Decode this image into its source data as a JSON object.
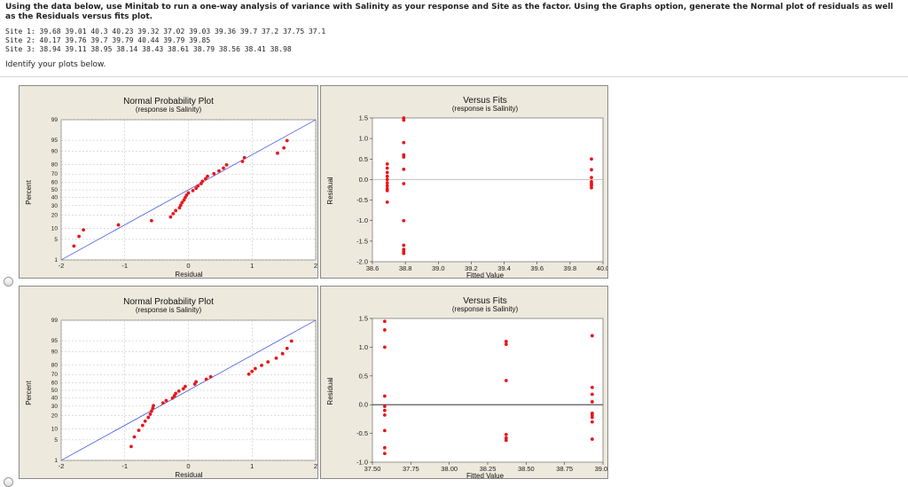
{
  "question": {
    "instructions": "Using the data below, use Minitab to run a one-way analysis of variance with Salinity as your response and Site as the factor. Using the Graphs option, generate the Normal plot of residuals as well as the Residuals versus fits plot.",
    "sites": [
      "Site 1: 39.68 39.01 40.3 40.23 39.32 37.02 39.03 39.36 39.7 37.2 37.75 37.1",
      "Site 2: 40.17 39.76 39.7 39.79 40.44 39.79 39.85",
      "Site 3: 38.94 39.11 38.95 38.14 38.43 38.61 38.79 38.56 38.41 38.98"
    ]
  },
  "prompt": "Identify your plots below.",
  "options": [
    {
      "normal_plot": {
        "title": "Normal Probability Plot",
        "subtitle": "(response is Salinity)",
        "xlabel": "Residual",
        "ylabel": "Percent",
        "y_ticks": [
          "1",
          "5",
          "10",
          "20",
          "30",
          "40",
          "50",
          "60",
          "70",
          "80",
          "90",
          "95",
          "99"
        ],
        "x_ticks": [
          "-2",
          "-1",
          "0",
          "1",
          "2"
        ],
        "chart_data": {
          "type": "scatter",
          "title": "Normal Probability Plot",
          "subtitle": "(response is Salinity)",
          "xlabel": "Residual",
          "ylabel": "Percent",
          "xlim": [
            -2.0,
            2.0
          ],
          "points": [
            [
              -1.8,
              3.1
            ],
            [
              -1.72,
              6.1
            ],
            [
              -1.65,
              9.2
            ],
            [
              -1.1,
              12.2
            ],
            [
              -0.58,
              15.3
            ],
            [
              -0.28,
              18.4
            ],
            [
              -0.24,
              21.4
            ],
            [
              -0.2,
              24.5
            ],
            [
              -0.14,
              27.6
            ],
            [
              -0.12,
              30.6
            ],
            [
              -0.1,
              33.7
            ],
            [
              -0.07,
              36.7
            ],
            [
              -0.05,
              39.8
            ],
            [
              -0.03,
              42.9
            ],
            [
              0.0,
              45.9
            ],
            [
              0.07,
              49.0
            ],
            [
              0.12,
              52.0
            ],
            [
              0.15,
              55.1
            ],
            [
              0.2,
              58.2
            ],
            [
              0.22,
              61.2
            ],
            [
              0.27,
              64.3
            ],
            [
              0.3,
              67.3
            ],
            [
              0.4,
              70.4
            ],
            [
              0.48,
              73.5
            ],
            [
              0.55,
              76.5
            ],
            [
              0.6,
              79.6
            ],
            [
              0.85,
              82.7
            ],
            [
              0.88,
              85.7
            ],
            [
              1.4,
              88.8
            ],
            [
              1.5,
              91.8
            ],
            [
              1.55,
              94.9
            ]
          ]
        }
      },
      "fits_plot": {
        "title": "Versus Fits",
        "subtitle": "(response is Salinity)",
        "xlabel": "Fitted Value",
        "ylabel": "Residual",
        "y_ticks": [
          "1.5",
          "1.0",
          "0.5",
          "0.0",
          "-0.5",
          "-1.0",
          "-1.5",
          "-2.0"
        ],
        "x_ticks": [
          "38.6",
          "38.8",
          "39.0",
          "39.2",
          "39.4",
          "39.6",
          "39.8",
          "40.0"
        ],
        "chart_data": {
          "type": "scatter",
          "title": "Versus Fits",
          "subtitle": "(response is Salinity)",
          "xlabel": "Fitted Value",
          "ylabel": "Residual",
          "xlim": [
            38.6,
            40.0
          ],
          "ylim": [
            -2.0,
            1.5
          ],
          "points": [
            [
              38.69,
              0.38
            ],
            [
              38.69,
              0.28
            ],
            [
              38.69,
              0.17
            ],
            [
              38.69,
              0.08
            ],
            [
              38.69,
              0.0
            ],
            [
              38.69,
              -0.08
            ],
            [
              38.69,
              -0.15
            ],
            [
              38.69,
              -0.22
            ],
            [
              38.69,
              -0.27
            ],
            [
              38.69,
              -0.55
            ],
            [
              38.79,
              1.5
            ],
            [
              38.79,
              1.45
            ],
            [
              38.79,
              0.9
            ],
            [
              38.79,
              0.6
            ],
            [
              38.79,
              0.55
            ],
            [
              38.79,
              0.25
            ],
            [
              38.79,
              -1.0
            ],
            [
              38.79,
              -1.6
            ],
            [
              38.79,
              -1.7
            ],
            [
              38.79,
              -1.75
            ],
            [
              38.79,
              -1.8
            ],
            [
              38.79,
              -0.1
            ],
            [
              39.93,
              0.5
            ],
            [
              39.93,
              0.24
            ],
            [
              39.93,
              0.05
            ],
            [
              39.93,
              -0.05
            ],
            [
              39.93,
              -0.1
            ],
            [
              39.93,
              -0.14
            ],
            [
              39.93,
              -0.2
            ]
          ]
        }
      }
    },
    {
      "normal_plot": {
        "title": "Normal Probability Plot",
        "subtitle": "(response is Salinity)",
        "xlabel": "Residual",
        "ylabel": "Percent",
        "y_ticks": [
          "1",
          "5",
          "10",
          "20",
          "30",
          "40",
          "50",
          "60",
          "70",
          "80",
          "90",
          "95",
          "99"
        ],
        "x_ticks": [
          "-2",
          "-1",
          "0",
          "1",
          "2"
        ],
        "chart_data": {
          "type": "scatter",
          "title": "Normal Probability Plot",
          "subtitle": "(response is Salinity)",
          "xlabel": "Residual",
          "ylabel": "Percent",
          "xlim": [
            -2.0,
            2.0
          ],
          "points": [
            [
              -0.9,
              3.1
            ],
            [
              -0.85,
              6.1
            ],
            [
              -0.78,
              9.2
            ],
            [
              -0.72,
              12.2
            ],
            [
              -0.68,
              15.3
            ],
            [
              -0.63,
              18.4
            ],
            [
              -0.6,
              21.4
            ],
            [
              -0.58,
              24.5
            ],
            [
              -0.56,
              27.6
            ],
            [
              -0.55,
              30.6
            ],
            [
              -0.4,
              33.7
            ],
            [
              -0.35,
              36.7
            ],
            [
              -0.25,
              39.8
            ],
            [
              -0.22,
              42.9
            ],
            [
              -0.2,
              45.9
            ],
            [
              -0.15,
              49.0
            ],
            [
              -0.08,
              52.0
            ],
            [
              -0.05,
              55.1
            ],
            [
              0.1,
              58.2
            ],
            [
              0.12,
              61.2
            ],
            [
              0.28,
              64.3
            ],
            [
              0.35,
              67.3
            ],
            [
              0.95,
              70.4
            ],
            [
              1.0,
              73.5
            ],
            [
              1.05,
              76.5
            ],
            [
              1.15,
              79.6
            ],
            [
              1.25,
              82.7
            ],
            [
              1.38,
              85.7
            ],
            [
              1.48,
              88.8
            ],
            [
              1.55,
              91.8
            ],
            [
              1.62,
              94.9
            ]
          ]
        }
      },
      "fits_plot": {
        "title": "Versus Fits",
        "subtitle": "(response is Salinity)",
        "xlabel": "Fitted Value",
        "ylabel": "Residual",
        "y_ticks": [
          "1.5",
          "1.0",
          "0.5",
          "0.0",
          "-0.5",
          "-1.0"
        ],
        "x_ticks": [
          "37.50",
          "37.75",
          "38.00",
          "38.25",
          "38.50",
          "38.75",
          "39.00"
        ],
        "chart_data": {
          "type": "scatter",
          "title": "Versus Fits",
          "subtitle": "(response is Salinity)",
          "xlabel": "Fitted Value",
          "ylabel": "Residual",
          "xlim": [
            37.5,
            39.0
          ],
          "ylim": [
            -1.0,
            1.5
          ],
          "points": [
            [
              37.58,
              1.45
            ],
            [
              37.58,
              1.3
            ],
            [
              37.58,
              1.0
            ],
            [
              37.58,
              0.15
            ],
            [
              37.58,
              -0.03
            ],
            [
              37.58,
              -0.1
            ],
            [
              37.58,
              -0.18
            ],
            [
              37.58,
              -0.45
            ],
            [
              37.58,
              -0.75
            ],
            [
              37.58,
              -0.85
            ],
            [
              38.37,
              1.1
            ],
            [
              38.37,
              1.05
            ],
            [
              38.37,
              0.42
            ],
            [
              38.37,
              -0.52
            ],
            [
              38.37,
              -0.58
            ],
            [
              38.37,
              -0.62
            ],
            [
              38.93,
              1.2
            ],
            [
              38.93,
              0.3
            ],
            [
              38.93,
              0.18
            ],
            [
              38.93,
              0.05
            ],
            [
              38.93,
              -0.15
            ],
            [
              38.93,
              -0.18
            ],
            [
              38.93,
              -0.22
            ],
            [
              38.93,
              -0.3
            ],
            [
              38.93,
              -0.6
            ]
          ]
        }
      }
    }
  ],
  "colors": {
    "panel_bg": "#ede9dc",
    "plot_bg": "#ffffff",
    "point": "#e8161b",
    "fit_line": "#2a3dd6",
    "zero_line": "#111111",
    "grid": "#bdbdbd"
  }
}
